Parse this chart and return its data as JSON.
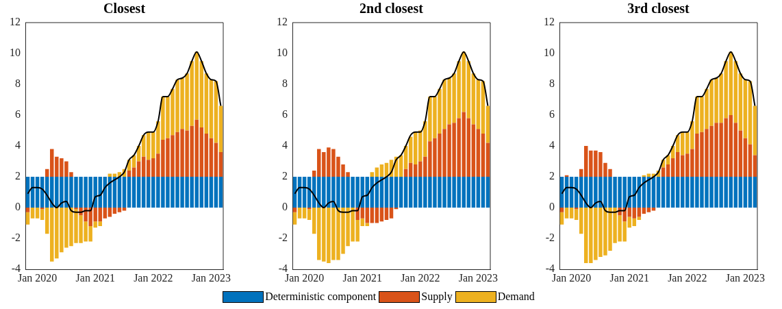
{
  "chart_data": [
    {
      "type": "bar",
      "title": "Closest",
      "stacked": true,
      "legend": "bottom",
      "ylim": [
        -4,
        12
      ],
      "yticks": [
        -4,
        -2,
        0,
        2,
        4,
        6,
        8,
        10,
        12
      ],
      "categories": [
        null,
        null,
        "Jan 2020",
        null,
        null,
        null,
        null,
        null,
        null,
        null,
        null,
        null,
        null,
        null,
        "Jan 2021",
        null,
        null,
        null,
        null,
        null,
        null,
        null,
        null,
        null,
        null,
        null,
        "Jan 2022",
        null,
        null,
        null,
        null,
        null,
        null,
        null,
        null,
        null,
        null,
        null,
        "Jan 2023",
        null,
        null
      ],
      "series": [
        {
          "name": "Deterministic component",
          "color": "#0072bd",
          "values": [
            2,
            2,
            2,
            2,
            2,
            2,
            2,
            2,
            2,
            2,
            2,
            2,
            2,
            2,
            2,
            2,
            2,
            2,
            2,
            2,
            2,
            2,
            2,
            2,
            2,
            2,
            2,
            2,
            2,
            2,
            2,
            2,
            2,
            2,
            2,
            2,
            2,
            2,
            2,
            2,
            2
          ]
        },
        {
          "name": "Supply",
          "color": "#d95319",
          "values": [
            -0.3,
            0,
            0,
            -0.1,
            0.5,
            1.8,
            1.3,
            1.2,
            1.0,
            0.3,
            -0.1,
            -0.5,
            -0.9,
            -1.2,
            -0.9,
            -0.9,
            -0.7,
            -0.6,
            -0.4,
            -0.3,
            -0.2,
            0.4,
            0.6,
            1.0,
            1.3,
            1.1,
            1.2,
            1.5,
            2.4,
            2.5,
            2.7,
            2.9,
            3.1,
            3.0,
            3.3,
            3.7,
            3.2,
            2.8,
            2.5,
            2.2,
            1.6
          ]
        },
        {
          "name": "Demand",
          "color": "#edb120",
          "values": [
            -0.8,
            -0.7,
            -0.7,
            -0.7,
            -1.7,
            -3.5,
            -3.3,
            -2.9,
            -2.6,
            -2.5,
            -2.2,
            -1.8,
            -1.3,
            -1.0,
            -0.4,
            -0.3,
            0,
            0.2,
            0.2,
            0.3,
            0.5,
            0.7,
            0.8,
            1.0,
            1.4,
            1.8,
            1.7,
            2.1,
            2.8,
            2.7,
            3.0,
            3.4,
            3.3,
            3.7,
            4.2,
            4.4,
            4.3,
            3.9,
            3.8,
            4.0,
            3.0
          ]
        },
        {
          "type": "line",
          "color": "#000000",
          "values": [
            0.9,
            1.3,
            1.3,
            1.2,
            0.8,
            0.3,
            0.0,
            0.3,
            0.4,
            -0.2,
            -0.3,
            -0.3,
            -0.2,
            -0.2,
            0.7,
            0.8,
            1.3,
            1.6,
            1.8,
            2.0,
            2.3,
            3.1,
            3.4,
            4.0,
            4.7,
            4.9,
            4.9,
            5.6,
            7.2,
            7.2,
            7.7,
            8.3,
            8.4,
            8.7,
            9.5,
            10.1,
            9.5,
            8.7,
            8.3,
            8.2,
            6.6
          ]
        }
      ]
    },
    {
      "type": "bar",
      "title": "2nd closest",
      "stacked": true,
      "legend": "bottom",
      "ylim": [
        -4,
        12
      ],
      "yticks": [
        -4,
        -2,
        0,
        2,
        4,
        6,
        8,
        10,
        12
      ],
      "categories": [
        null,
        null,
        "Jan 2020",
        null,
        null,
        null,
        null,
        null,
        null,
        null,
        null,
        null,
        null,
        null,
        "Jan 2021",
        null,
        null,
        null,
        null,
        null,
        null,
        null,
        null,
        null,
        null,
        null,
        "Jan 2022",
        null,
        null,
        null,
        null,
        null,
        null,
        null,
        null,
        null,
        null,
        null,
        "Jan 2023",
        null,
        null
      ],
      "series": [
        {
          "name": "Deterministic component",
          "color": "#0072bd",
          "values": [
            2,
            2,
            2,
            2,
            2,
            2,
            2,
            2,
            2,
            2,
            2,
            2,
            2,
            2,
            2,
            2,
            2,
            2,
            2,
            2,
            2,
            2,
            2,
            2,
            2,
            2,
            2,
            2,
            2,
            2,
            2,
            2,
            2,
            2,
            2,
            2,
            2,
            2,
            2,
            2,
            2
          ]
        },
        {
          "name": "Supply",
          "color": "#d95319",
          "values": [
            -0.3,
            0,
            0,
            -0.1,
            0.4,
            1.8,
            1.6,
            1.9,
            1.8,
            1.3,
            0.8,
            0.3,
            0,
            -0.8,
            -0.7,
            -1.0,
            -1.0,
            -1.0,
            -0.9,
            -0.8,
            -0.7,
            -0.1,
            0,
            0.5,
            0.9,
            0.8,
            1.0,
            1.3,
            2.3,
            2.5,
            2.8,
            3.1,
            3.4,
            3.5,
            3.8,
            4.2,
            3.8,
            3.4,
            3.1,
            2.8,
            2.2
          ]
        },
        {
          "name": "Demand",
          "color": "#edb120",
          "values": [
            -0.8,
            -0.7,
            -0.7,
            -0.7,
            -1.7,
            -3.4,
            -3.5,
            -3.6,
            -3.4,
            -3.4,
            -3.0,
            -2.5,
            -2.2,
            -1.4,
            -0.5,
            -0.2,
            0.3,
            0.6,
            0.8,
            0.9,
            1.1,
            1.3,
            1.4,
            1.5,
            1.7,
            2.1,
            2.0,
            2.3,
            2.9,
            2.7,
            2.9,
            3.2,
            3.0,
            3.2,
            3.7,
            3.9,
            3.7,
            3.3,
            3.2,
            3.4,
            2.4
          ]
        },
        {
          "type": "line",
          "color": "#000000",
          "values": [
            0.9,
            1.3,
            1.3,
            1.2,
            0.8,
            0.3,
            0.0,
            0.3,
            0.4,
            -0.2,
            -0.3,
            -0.3,
            -0.2,
            -0.2,
            0.7,
            0.8,
            1.3,
            1.6,
            1.8,
            2.0,
            2.3,
            3.1,
            3.4,
            4.0,
            4.7,
            4.9,
            4.9,
            5.6,
            7.2,
            7.2,
            7.7,
            8.3,
            8.4,
            8.7,
            9.5,
            10.1,
            9.5,
            8.7,
            8.3,
            8.2,
            6.6
          ]
        }
      ]
    },
    {
      "type": "bar",
      "title": "3rd closest",
      "stacked": true,
      "legend": "bottom",
      "ylim": [
        -4,
        12
      ],
      "yticks": [
        -4,
        -2,
        0,
        2,
        4,
        6,
        8,
        10,
        12
      ],
      "categories": [
        null,
        null,
        "Jan 2020",
        null,
        null,
        null,
        null,
        null,
        null,
        null,
        null,
        null,
        null,
        null,
        "Jan 2021",
        null,
        null,
        null,
        null,
        null,
        null,
        null,
        null,
        null,
        null,
        null,
        "Jan 2022",
        null,
        null,
        null,
        null,
        null,
        null,
        null,
        null,
        null,
        null,
        null,
        "Jan 2023",
        null,
        null
      ],
      "series": [
        {
          "name": "Deterministic component",
          "color": "#0072bd",
          "values": [
            2,
            2,
            2,
            2,
            2,
            2,
            2,
            2,
            2,
            2,
            2,
            2,
            2,
            2,
            2,
            2,
            2,
            2,
            2,
            2,
            2,
            2,
            2,
            2,
            2,
            2,
            2,
            2,
            2,
            2,
            2,
            2,
            2,
            2,
            2,
            2,
            2,
            2,
            2,
            2,
            2
          ]
        },
        {
          "name": "Supply",
          "color": "#d95319",
          "values": [
            -0.3,
            0.1,
            0,
            -0.1,
            0.5,
            2.0,
            1.7,
            1.7,
            1.6,
            0.9,
            0.5,
            0,
            -0.5,
            -0.9,
            -0.6,
            -0.7,
            -0.6,
            -0.4,
            -0.3,
            -0.2,
            0,
            0.6,
            0.8,
            1.2,
            1.6,
            1.4,
            1.5,
            1.8,
            2.8,
            2.9,
            3.1,
            3.3,
            3.5,
            3.5,
            3.8,
            4.0,
            3.5,
            3.0,
            2.5,
            2.1,
            1.4
          ]
        },
        {
          "name": "Demand",
          "color": "#edb120",
          "values": [
            -0.8,
            -0.7,
            -0.7,
            -0.7,
            -1.7,
            -3.6,
            -3.6,
            -3.4,
            -3.2,
            -3.1,
            -2.8,
            -2.3,
            -1.7,
            -1.3,
            -0.7,
            -0.5,
            -0.2,
            0.1,
            0.2,
            0.2,
            0.4,
            0.5,
            0.6,
            0.8,
            1.1,
            1.5,
            1.4,
            1.8,
            2.4,
            2.3,
            2.6,
            3.0,
            2.9,
            3.2,
            3.7,
            4.1,
            4.0,
            3.7,
            3.8,
            4.1,
            3.2
          ]
        },
        {
          "type": "line",
          "color": "#000000",
          "values": [
            0.9,
            1.3,
            1.3,
            1.2,
            0.8,
            0.3,
            0.0,
            0.3,
            0.4,
            -0.2,
            -0.3,
            -0.3,
            -0.2,
            -0.2,
            0.7,
            0.8,
            1.3,
            1.6,
            1.8,
            2.0,
            2.3,
            3.1,
            3.4,
            4.0,
            4.7,
            4.9,
            4.9,
            5.6,
            7.2,
            7.2,
            7.7,
            8.3,
            8.4,
            8.7,
            9.5,
            10.1,
            9.5,
            8.7,
            8.3,
            8.2,
            6.6
          ]
        }
      ]
    }
  ]
}
